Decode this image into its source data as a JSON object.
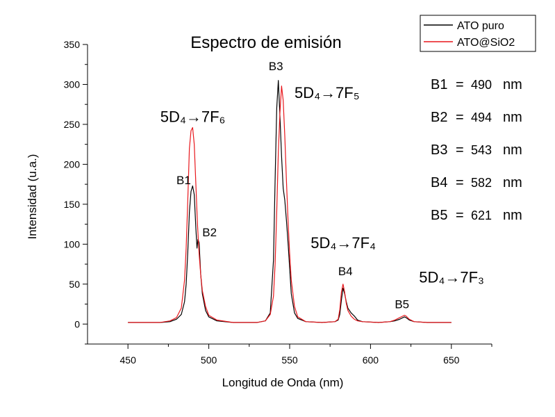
{
  "chart_data": {
    "type": "line",
    "title": "Espectro de emisión",
    "xlabel": "Longitud de Onda (nm)",
    "ylabel": "Intensidad (u.a.)",
    "xlim": [
      425,
      675
    ],
    "ylim": [
      -25,
      350
    ],
    "x_ticks": [
      "450",
      "500",
      "550",
      "600",
      "650"
    ],
    "y_ticks": [
      "0",
      "50",
      "100",
      "150",
      "200",
      "250",
      "300",
      "350"
    ],
    "grid": false,
    "legend_position": "top-right",
    "colors": {
      "ATO puro": "#000000",
      "ATO@SiO2": "#e8171c"
    },
    "series": [
      {
        "name": "ATO puro",
        "color": "#000000",
        "points": [
          [
            450,
            2
          ],
          [
            460,
            2
          ],
          [
            470,
            2
          ],
          [
            476,
            3
          ],
          [
            480,
            6
          ],
          [
            483,
            12
          ],
          [
            485,
            28
          ],
          [
            486,
            50
          ],
          [
            487,
            90
          ],
          [
            488,
            140
          ],
          [
            489,
            166
          ],
          [
            490,
            173
          ],
          [
            491,
            162
          ],
          [
            492,
            120
          ],
          [
            492.7,
            95
          ],
          [
            493.3,
            106
          ],
          [
            494,
            102
          ],
          [
            495,
            62
          ],
          [
            496,
            38
          ],
          [
            498,
            17
          ],
          [
            500,
            9
          ],
          [
            505,
            4
          ],
          [
            515,
            2
          ],
          [
            530,
            2
          ],
          [
            535,
            4
          ],
          [
            538,
            14
          ],
          [
            540,
            80
          ],
          [
            541,
            180
          ],
          [
            542,
            270
          ],
          [
            543,
            305
          ],
          [
            544,
            260
          ],
          [
            545,
            210
          ],
          [
            546,
            170
          ],
          [
            547,
            155
          ],
          [
            548,
            130
          ],
          [
            549,
            102
          ],
          [
            550,
            70
          ],
          [
            551,
            38
          ],
          [
            553,
            14
          ],
          [
            555,
            7
          ],
          [
            560,
            3
          ],
          [
            570,
            2
          ],
          [
            578,
            3
          ],
          [
            580,
            5
          ],
          [
            581,
            12
          ],
          [
            582,
            30
          ],
          [
            583,
            45
          ],
          [
            584,
            38
          ],
          [
            585,
            28
          ],
          [
            586,
            20
          ],
          [
            588,
            14
          ],
          [
            590,
            10
          ],
          [
            592,
            5
          ],
          [
            595,
            3
          ],
          [
            605,
            2
          ],
          [
            612,
            3
          ],
          [
            615,
            4
          ],
          [
            618,
            6
          ],
          [
            620,
            8
          ],
          [
            621,
            9
          ],
          [
            622,
            8
          ],
          [
            624,
            5
          ],
          [
            627,
            3
          ],
          [
            635,
            2
          ],
          [
            650,
            2
          ]
        ]
      },
      {
        "name": "ATO@SiO2",
        "color": "#e8171c",
        "points": [
          [
            450,
            2
          ],
          [
            460,
            2
          ],
          [
            470,
            2
          ],
          [
            476,
            4
          ],
          [
            480,
            8
          ],
          [
            483,
            20
          ],
          [
            485,
            55
          ],
          [
            486,
            95
          ],
          [
            487,
            155
          ],
          [
            488,
            220
          ],
          [
            489,
            242
          ],
          [
            490,
            246
          ],
          [
            491,
            225
          ],
          [
            492,
            175
          ],
          [
            493,
            125
          ],
          [
            494,
            88
          ],
          [
            495,
            62
          ],
          [
            496,
            42
          ],
          [
            498,
            22
          ],
          [
            500,
            11
          ],
          [
            505,
            5
          ],
          [
            515,
            2
          ],
          [
            530,
            2
          ],
          [
            535,
            4
          ],
          [
            538,
            12
          ],
          [
            540,
            35
          ],
          [
            541,
            75
          ],
          [
            542,
            140
          ],
          [
            543,
            215
          ],
          [
            544,
            265
          ],
          [
            545,
            298
          ],
          [
            546,
            280
          ],
          [
            547,
            235
          ],
          [
            548,
            180
          ],
          [
            549,
            130
          ],
          [
            550,
            88
          ],
          [
            551,
            55
          ],
          [
            553,
            22
          ],
          [
            555,
            9
          ],
          [
            560,
            3
          ],
          [
            570,
            2
          ],
          [
            578,
            3
          ],
          [
            580,
            6
          ],
          [
            581,
            18
          ],
          [
            582,
            40
          ],
          [
            583,
            50
          ],
          [
            584,
            40
          ],
          [
            585,
            26
          ],
          [
            586,
            17
          ],
          [
            588,
            10
          ],
          [
            590,
            6
          ],
          [
            592,
            4
          ],
          [
            595,
            3
          ],
          [
            605,
            2
          ],
          [
            612,
            3
          ],
          [
            615,
            5
          ],
          [
            618,
            8
          ],
          [
            620,
            10
          ],
          [
            621,
            11
          ],
          [
            622,
            10
          ],
          [
            624,
            6
          ],
          [
            627,
            3
          ],
          [
            635,
            2
          ],
          [
            650,
            2
          ]
        ]
      }
    ],
    "band_labels": [
      {
        "text": "B1",
        "x": 480,
        "y": 175
      },
      {
        "text": "B2",
        "x": 496,
        "y": 110
      },
      {
        "text": "B3",
        "x": 537,
        "y": 318
      },
      {
        "text": "B4",
        "x": 580,
        "y": 61
      },
      {
        "text": "B5",
        "x": 615,
        "y": 20
      }
    ],
    "transition_labels": [
      {
        "text": "5D₄→7F₆",
        "x": 470,
        "y": 253
      },
      {
        "text": "5D₄→7F₅",
        "x": 553,
        "y": 283
      },
      {
        "text": "5D₄→7F₄",
        "x": 563,
        "y": 95
      },
      {
        "text": "5D₄→7F₃",
        "x": 630,
        "y": 52
      }
    ],
    "band_positions": [
      {
        "label": "B1",
        "value": "490",
        "unit": "nm"
      },
      {
        "label": "B2",
        "value": "494",
        "unit": "nm"
      },
      {
        "label": "B3",
        "value": "543",
        "unit": "nm"
      },
      {
        "label": "B4",
        "value": "582",
        "unit": "nm"
      },
      {
        "label": "B5",
        "value": "621",
        "unit": "nm"
      }
    ]
  }
}
